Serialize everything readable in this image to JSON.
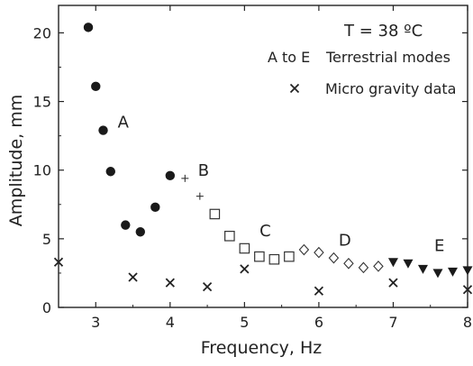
{
  "chart_data": {
    "type": "scatter",
    "xlabel": "Frequency, Hz",
    "ylabel": "Amplitude, mm",
    "xlim": [
      2.5,
      8
    ],
    "ylim": [
      0,
      22
    ],
    "xticks": [
      3,
      4,
      5,
      6,
      7,
      8
    ],
    "yticks": [
      0,
      5,
      10,
      15,
      20
    ],
    "grid": false,
    "legend_position": "top-right",
    "annotations": {
      "temperature": "T = 38 ºC",
      "modes_prefix": "A to E",
      "modes_text": "Terrestrial modes",
      "microgravity_text": "Micro gravity data"
    },
    "mode_labels": [
      {
        "text": "A",
        "x": 3.37,
        "y": 13.1
      },
      {
        "text": "B",
        "x": 4.45,
        "y": 9.6
      },
      {
        "text": "C",
        "x": 5.28,
        "y": 5.2
      },
      {
        "text": "D",
        "x": 6.35,
        "y": 4.5
      },
      {
        "text": "E",
        "x": 7.62,
        "y": 4.1
      }
    ],
    "series": [
      {
        "mode": "A",
        "marker": "circle",
        "points": [
          [
            2.9,
            20.4
          ],
          [
            3.0,
            16.1
          ],
          [
            3.1,
            12.9
          ],
          [
            3.2,
            9.9
          ],
          [
            3.4,
            6.0
          ],
          [
            3.6,
            5.5
          ],
          [
            3.8,
            7.3
          ],
          [
            4.0,
            9.6
          ]
        ]
      },
      {
        "mode": "B",
        "marker": "plus",
        "points": [
          [
            4.2,
            9.4
          ],
          [
            4.4,
            8.1
          ]
        ]
      },
      {
        "mode": "C",
        "marker": "square",
        "points": [
          [
            4.6,
            6.8
          ],
          [
            4.8,
            5.2
          ],
          [
            5.0,
            4.3
          ],
          [
            5.2,
            3.7
          ],
          [
            5.4,
            3.5
          ],
          [
            5.6,
            3.7
          ]
        ]
      },
      {
        "mode": "D",
        "marker": "diamond",
        "points": [
          [
            5.8,
            4.2
          ],
          [
            6.0,
            4.0
          ],
          [
            6.2,
            3.6
          ],
          [
            6.4,
            3.2
          ],
          [
            6.6,
            2.9
          ],
          [
            6.8,
            3.0
          ]
        ]
      },
      {
        "mode": "E",
        "marker": "triangle-down",
        "points": [
          [
            7.0,
            3.3
          ],
          [
            7.2,
            3.2
          ],
          [
            7.4,
            2.8
          ],
          [
            7.6,
            2.5
          ],
          [
            7.8,
            2.6
          ],
          [
            8.0,
            2.7
          ]
        ]
      },
      {
        "name": "Micro gravity data",
        "marker": "x",
        "points": [
          [
            2.5,
            3.3
          ],
          [
            3.5,
            2.2
          ],
          [
            4.0,
            1.8
          ],
          [
            4.5,
            1.5
          ],
          [
            5.0,
            2.8
          ],
          [
            6.0,
            1.2
          ],
          [
            7.0,
            1.8
          ],
          [
            8.0,
            1.3
          ]
        ]
      }
    ]
  }
}
